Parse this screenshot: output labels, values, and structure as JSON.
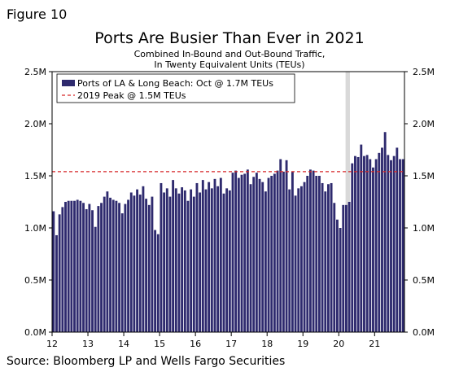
{
  "figure_label": "Figure 10",
  "source": "Source: Bloomberg LP and Wells Fargo Securities",
  "chart_data": {
    "type": "bar",
    "title": "Ports Are Busier Than Ever in 2021",
    "subtitle_line1": "Combined In-Bound and Out-Bound Traffic,",
    "subtitle_line2": "In Twenty Equivalent Units (TEUs)",
    "ylim": [
      0,
      2.5
    ],
    "y_ticks": [
      {
        "value": 0,
        "label": "0.0M"
      },
      {
        "value": 0.5,
        "label": "0.5M"
      },
      {
        "value": 1.0,
        "label": "1.0M"
      },
      {
        "value": 1.5,
        "label": "1.5M"
      },
      {
        "value": 2.0,
        "label": "2.0M"
      },
      {
        "value": 2.5,
        "label": "2.5M"
      }
    ],
    "x_ticks": [
      "12",
      "13",
      "14",
      "15",
      "16",
      "17",
      "18",
      "19",
      "20",
      "21"
    ],
    "start_year": 2012,
    "bar_color": "#2e2a6e",
    "reference_line": {
      "label": "2019 Peak @ 1.5M TEUs",
      "value": 1.54,
      "color": "#d62728"
    },
    "shaded_period": {
      "start_index": 98,
      "end_index": 99,
      "color": "#d9d9d9"
    },
    "series": [
      {
        "name": "Ports of LA & Long Beach: Oct @ 1.7M TEUs",
        "values": [
          1.16,
          0.93,
          1.13,
          1.2,
          1.25,
          1.26,
          1.26,
          1.26,
          1.27,
          1.26,
          1.24,
          1.18,
          1.23,
          1.17,
          1.01,
          1.21,
          1.24,
          1.3,
          1.35,
          1.29,
          1.27,
          1.26,
          1.24,
          1.14,
          1.23,
          1.27,
          1.34,
          1.31,
          1.37,
          1.32,
          1.4,
          1.28,
          1.22,
          1.3,
          0.98,
          0.94,
          1.43,
          1.34,
          1.38,
          1.3,
          1.46,
          1.38,
          1.33,
          1.39,
          1.36,
          1.26,
          1.37,
          1.3,
          1.43,
          1.34,
          1.46,
          1.37,
          1.44,
          1.38,
          1.47,
          1.4,
          1.48,
          1.33,
          1.38,
          1.36,
          1.53,
          1.55,
          1.48,
          1.51,
          1.52,
          1.56,
          1.42,
          1.49,
          1.53,
          1.47,
          1.44,
          1.35,
          1.48,
          1.5,
          1.52,
          1.55,
          1.66,
          1.54,
          1.65,
          1.37,
          1.54,
          1.31,
          1.38,
          1.4,
          1.44,
          1.5,
          1.56,
          1.55,
          1.5,
          1.5,
          1.43,
          1.35,
          1.42,
          1.43,
          1.24,
          1.08,
          1.0,
          1.22,
          1.22,
          1.25,
          1.62,
          1.69,
          1.68,
          1.8,
          1.69,
          1.7,
          1.66,
          1.58,
          1.66,
          1.72,
          1.77,
          1.92,
          1.7,
          1.65,
          1.69,
          1.77,
          1.66,
          1.66
        ]
      }
    ]
  }
}
